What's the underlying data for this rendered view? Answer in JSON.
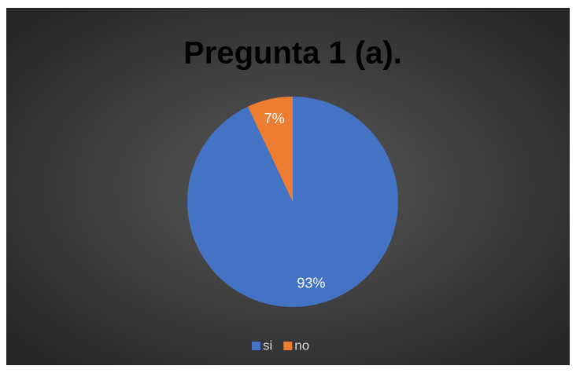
{
  "chart_data": {
    "type": "pie",
    "title": "Pregunta 1 (a).",
    "categories": [
      "si",
      "no"
    ],
    "values": [
      93,
      7
    ],
    "value_labels": [
      "93%",
      "7%"
    ],
    "colors": [
      "#4472c4",
      "#ed7d31"
    ],
    "legend": "bottom"
  }
}
